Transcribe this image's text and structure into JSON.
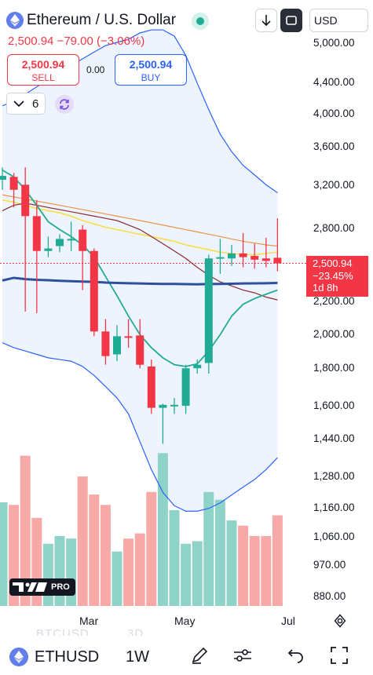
{
  "header": {
    "title": "Ethereum / U.S. Dollar",
    "quote_line": "2,500.94 −79.00 (−3.06%)",
    "currency": "USD"
  },
  "trade": {
    "sell_price": "2,500.94",
    "sell_label": "SELL",
    "spread": "0.00",
    "buy_price": "2,500.94",
    "buy_label": "BUY"
  },
  "indicators": {
    "count": "6"
  },
  "price_tag": {
    "price": "2,500.94",
    "change": "−23.45%",
    "countdown": "1d 8h"
  },
  "badge": {
    "pro_label": "PRO"
  },
  "bottom": {
    "symbol": "ETHUSD",
    "timeframe": "1W",
    "ghost_symbol": "BTCUSD",
    "ghost_timeframe": "3D"
  },
  "colors": {
    "up": "#22ab94",
    "down": "#f23645",
    "bb_band": "#2962ff",
    "bb_fill": "#eef4fd",
    "ma_long": "#2f4f9f",
    "ma_green": "#22ab94",
    "ma_yellow": "#f5e04a",
    "ma_orange": "#e8944a",
    "ma_brown": "#8a2a32"
  },
  "chart_data": {
    "type": "candlestick",
    "y_axis_labels": [
      "5,000.00",
      "4,400.00",
      "4,000.00",
      "3,600.00",
      "3,200.00",
      "2,800.00",
      "2,200.00",
      "2,000.00",
      "1,800.00",
      "1,600.00",
      "1,440.00",
      "1,280.00",
      "1,160.00",
      "1,060.00",
      "970.00",
      "880.00"
    ],
    "y_axis_scale": "log",
    "x_axis_labels": [
      "Mar",
      "May",
      "Jul"
    ],
    "last_price": 2500.94,
    "candles": [
      {
        "o": 3250,
        "h": 3380,
        "l": 3150,
        "c": 3290
      },
      {
        "o": 3280,
        "h": 3320,
        "l": 2980,
        "c": 3150
      },
      {
        "o": 3200,
        "h": 3380,
        "l": 2150,
        "c": 2900
      },
      {
        "o": 2900,
        "h": 3050,
        "l": 2140,
        "c": 2600
      },
      {
        "o": 2600,
        "h": 2720,
        "l": 2550,
        "c": 2620
      },
      {
        "o": 2640,
        "h": 2740,
        "l": 2590,
        "c": 2700
      },
      {
        "o": 2700,
        "h": 2850,
        "l": 2600,
        "c": 2700
      },
      {
        "o": 2780,
        "h": 2820,
        "l": 2300,
        "c": 2600
      },
      {
        "o": 2600,
        "h": 2620,
        "l": 1990,
        "c": 2020
      },
      {
        "o": 2020,
        "h": 2100,
        "l": 1820,
        "c": 1870
      },
      {
        "o": 1880,
        "h": 2060,
        "l": 1840,
        "c": 1990
      },
      {
        "o": 1990,
        "h": 2100,
        "l": 1920,
        "c": 1985
      },
      {
        "o": 1995,
        "h": 2100,
        "l": 1800,
        "c": 1820
      },
      {
        "o": 1810,
        "h": 1850,
        "l": 1560,
        "c": 1590
      },
      {
        "o": 1590,
        "h": 1610,
        "l": 1420,
        "c": 1605
      },
      {
        "o": 1600,
        "h": 1640,
        "l": 1560,
        "c": 1605
      },
      {
        "o": 1600,
        "h": 1820,
        "l": 1560,
        "c": 1800
      },
      {
        "o": 1800,
        "h": 1850,
        "l": 1770,
        "c": 1820
      },
      {
        "o": 1830,
        "h": 2570,
        "l": 1770,
        "c": 2540
      },
      {
        "o": 2540,
        "h": 2700,
        "l": 2420,
        "c": 2550
      },
      {
        "o": 2540,
        "h": 2650,
        "l": 2480,
        "c": 2580
      },
      {
        "o": 2580,
        "h": 2750,
        "l": 2470,
        "c": 2550
      },
      {
        "o": 2560,
        "h": 2660,
        "l": 2460,
        "c": 2530
      },
      {
        "o": 2540,
        "h": 2710,
        "l": 2470,
        "c": 2520
      },
      {
        "o": 2545,
        "h": 2880,
        "l": 2440,
        "c": 2501
      }
    ],
    "volume": [
      4,
      3.9,
      5.8,
      3.4,
      2.4,
      2.7,
      2.6,
      5.0,
      4.3,
      3.9,
      2.1,
      2.6,
      2.8,
      4.4,
      5.9,
      3.7,
      2.4,
      2.5,
      4.4,
      4.1,
      3.3,
      3.1,
      2.7,
      2.7,
      3.5
    ],
    "ma_long": [
      2370,
      2390,
      2380,
      2375,
      2372,
      2368,
      2365,
      2362,
      2360,
      2355,
      2352,
      2350,
      2348,
      2346,
      2345,
      2345,
      2343,
      2342,
      2344,
      2345,
      2346,
      2348,
      2349,
      2350,
      2352
    ],
    "ma_green": [
      3350,
      3280,
      3150,
      3000,
      2850,
      2780,
      2720,
      2650,
      2550,
      2400,
      2260,
      2120,
      2000,
      1920,
      1860,
      1820,
      1810,
      1825,
      1900,
      2000,
      2120,
      2200,
      2240,
      2270,
      2300
    ],
    "ma_yellow": [
      3050,
      3030,
      3000,
      2970,
      2950,
      2930,
      2900,
      2860,
      2830,
      2800,
      2780,
      2760,
      2740,
      2720,
      2700,
      2680,
      2650,
      2630,
      2610,
      2590,
      2580,
      2570,
      2570,
      2580,
      2590
    ],
    "ma_orange": [
      3100,
      3080,
      3060,
      3040,
      3020,
      3000,
      2980,
      2960,
      2940,
      2920,
      2900,
      2880,
      2860,
      2840,
      2820,
      2800,
      2780,
      2760,
      2740,
      2720,
      2700,
      2680,
      2665,
      2650,
      2640
    ],
    "ma_brown": [
      2950,
      3000,
      3020,
      3000,
      2980,
      2960,
      2940,
      2920,
      2900,
      2880,
      2860,
      2820,
      2780,
      2720,
      2660,
      2600,
      2540,
      2470,
      2410,
      2360,
      2330,
      2300,
      2280,
      2250,
      2230
    ],
    "bb_upper": [
      4100,
      4150,
      4250,
      4350,
      4450,
      4550,
      4650,
      4750,
      4850,
      4950,
      5000,
      5050,
      5150,
      5200,
      5200,
      5100,
      4800,
      4400,
      4050,
      3750,
      3550,
      3400,
      3300,
      3200,
      3120
    ],
    "bb_lower": [
      1950,
      1920,
      1900,
      1880,
      1860,
      1850,
      1840,
      1810,
      1760,
      1700,
      1640,
      1560,
      1430,
      1310,
      1220,
      1170,
      1150,
      1150,
      1160,
      1180,
      1210,
      1240,
      1270,
      1310,
      1360
    ]
  }
}
